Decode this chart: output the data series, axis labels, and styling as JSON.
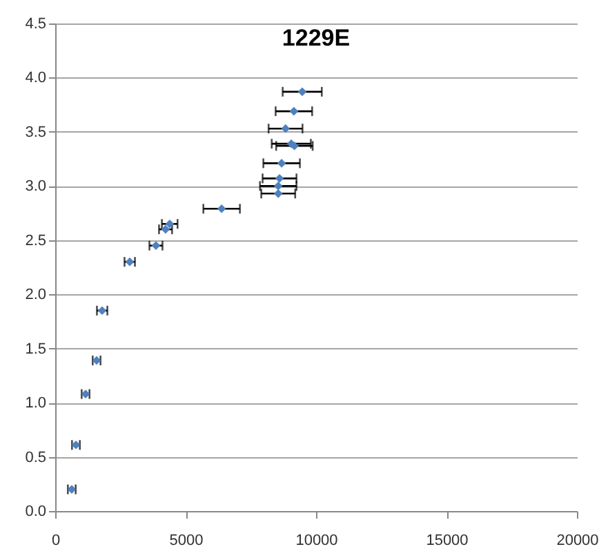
{
  "chart_data": {
    "type": "scatter",
    "title": "1229E",
    "x": [
      635,
      794,
      1164,
      1587,
      1799,
      2857,
      3862,
      4230,
      4390,
      6380,
      8550,
      8550,
      8600,
      8680,
      9050,
      9170,
      8830,
      9150,
      9470
    ],
    "values": [
      0.2,
      0.61,
      1.08,
      1.39,
      1.85,
      2.3,
      2.45,
      2.6,
      2.65,
      2.79,
      2.93,
      3.0,
      3.07,
      3.21,
      3.39,
      3.37,
      3.53,
      3.69,
      3.87
    ],
    "xerrors": [
      150,
      150,
      150,
      150,
      200,
      200,
      250,
      250,
      300,
      700,
      650,
      700,
      650,
      700,
      750,
      700,
      650,
      700,
      750
    ],
    "color": "#4f81bd",
    "marker": "diamond",
    "grid": "y",
    "xlim": [
      0,
      20000
    ],
    "xticks": [
      0,
      5000,
      10000,
      15000,
      20000
    ],
    "ylim": [
      0,
      4.5
    ],
    "yticks": [
      {
        "value": 0,
        "label": "0.0"
      },
      {
        "value": 0.5,
        "label": "0.5"
      },
      {
        "value": 1,
        "label": "1.0"
      },
      {
        "value": 1.5,
        "label": "1.5"
      },
      {
        "value": 2,
        "label": "2.0"
      },
      {
        "value": 2.5,
        "label": "2.5"
      },
      {
        "value": 3,
        "label": "3.0"
      },
      {
        "value": 3.5,
        "label": "3.5"
      },
      {
        "value": 4,
        "label": "4.0"
      },
      {
        "value": 4.5,
        "label": "4.5"
      }
    ]
  }
}
